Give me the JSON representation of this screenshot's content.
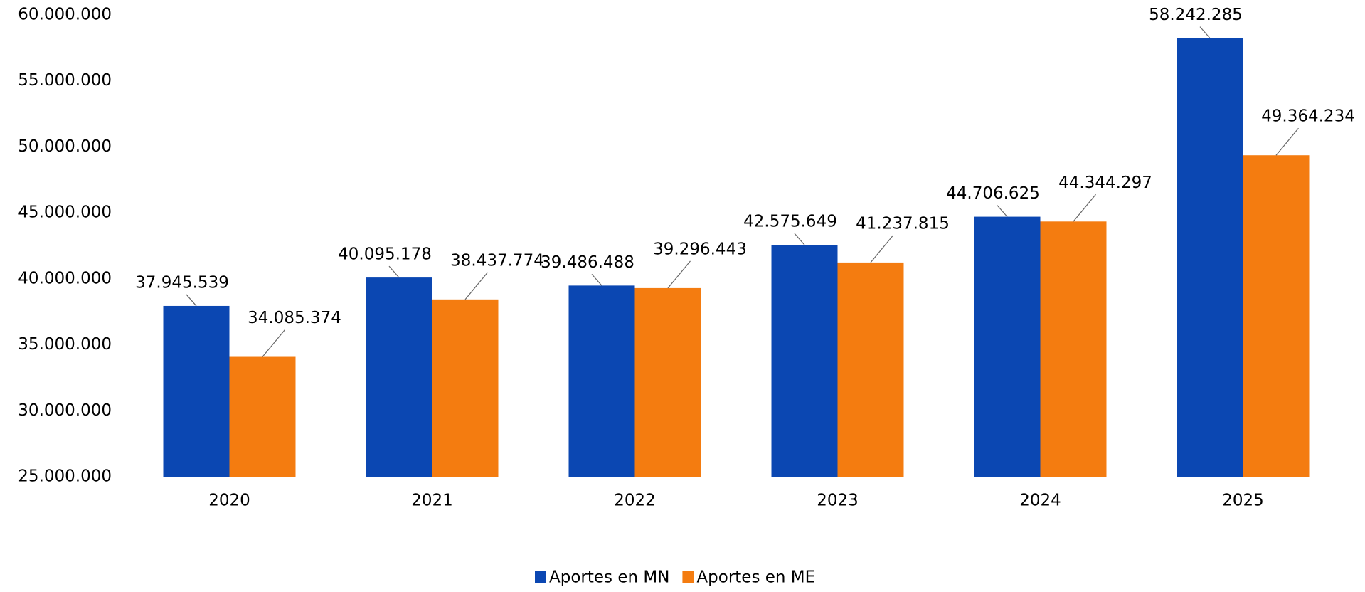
{
  "chart_data": {
    "type": "bar",
    "categories": [
      "2020",
      "2021",
      "2022",
      "2023",
      "2024",
      "2025"
    ],
    "series": [
      {
        "name": "Aportes en MN",
        "color": "#0b47b2",
        "values": [
          37945539,
          40095178,
          39486488,
          42575649,
          44706625,
          58242285
        ],
        "value_labels": [
          "37.945.539",
          "40.095.178",
          "39.486.488",
          "42.575.649",
          "44.706.625",
          "58.242.285"
        ]
      },
      {
        "name": "Aportes en ME",
        "color": "#f47c10",
        "values": [
          34085374,
          38437774,
          39296443,
          41237815,
          44344297,
          49364234
        ],
        "value_labels": [
          "34.085.374",
          "38.437.774",
          "39.296.443",
          "41.237.815",
          "44.344.297",
          "49.364.234"
        ]
      }
    ],
    "ylim": [
      25000000,
      60000000
    ],
    "yticks": [
      {
        "value": 25000000,
        "label": "25.000.000"
      },
      {
        "value": 30000000,
        "label": "30.000.000"
      },
      {
        "value": 35000000,
        "label": "35.000.000"
      },
      {
        "value": 40000000,
        "label": "40.000.000"
      },
      {
        "value": 45000000,
        "label": "45.000.000"
      },
      {
        "value": 50000000,
        "label": "50.000.000"
      },
      {
        "value": 55000000,
        "label": "55.000.000"
      },
      {
        "value": 60000000,
        "label": "60.000.000"
      }
    ],
    "grid": false,
    "legend": "bottom"
  }
}
